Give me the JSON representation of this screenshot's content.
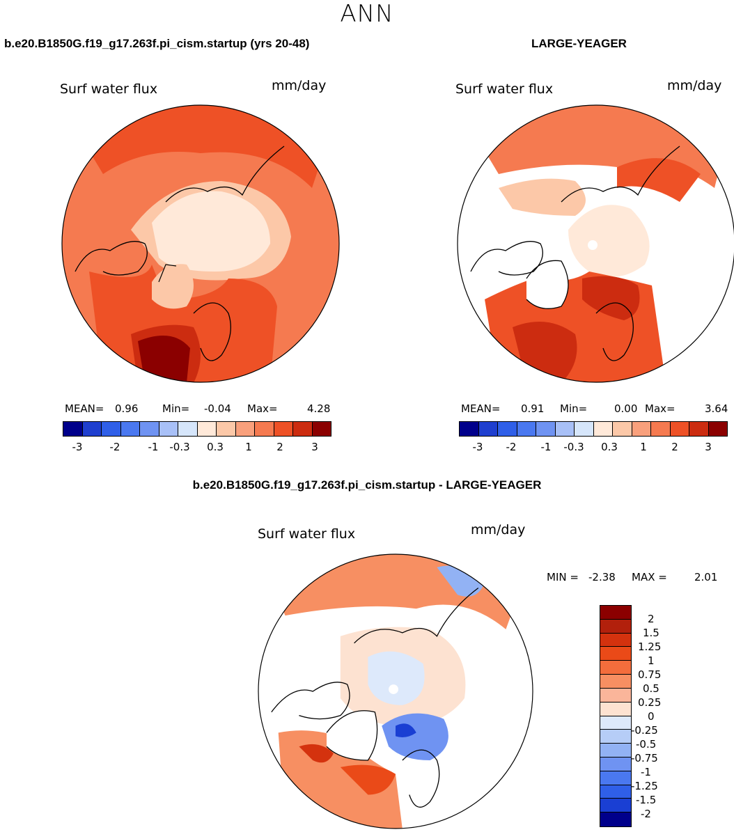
{
  "main_title": "ANN",
  "colors": {
    "diverging_14": [
      "#00008b",
      "#1f3fcf",
      "#2f5fe8",
      "#4a78f0",
      "#6f93f2",
      "#a8c0f7",
      "#d6e6fb",
      "#ffe9d9",
      "#fcc8a8",
      "#f9a07c",
      "#f57a50",
      "#ee5126",
      "#cc2c10",
      "#8b0000"
    ],
    "diff_16": [
      "#8b0000",
      "#b2200c",
      "#d4320e",
      "#ea4a18",
      "#f36d3c",
      "#f78f62",
      "#fab59a",
      "#fde2d1",
      "#dde9fb",
      "#b6cdf7",
      "#92b2f4",
      "#6f93f2",
      "#4a78f0",
      "#2f5fe8",
      "#1a3fd3",
      "#00008b"
    ],
    "land": "#ffffff",
    "coast": "#000000"
  },
  "panels": [
    {
      "case_title": "b.e20.B1850G.f19_g17.263f.pi_cism.startup (yrs 20-48)",
      "var_label": "Surf water flux",
      "units": "mm/day",
      "stats": {
        "mean_label": "MEAN=",
        "mean": "0.96",
        "min_label": "Min=",
        "min": "-0.04",
        "max_label": "Max=",
        "max": "4.28"
      },
      "colorbar_ticks": [
        "-3",
        "-2",
        "-1",
        "-0.3",
        "0.3",
        "1",
        "2",
        "3"
      ]
    },
    {
      "case_title": "LARGE-YEAGER",
      "var_label": "Surf water flux",
      "units": "mm/day",
      "stats": {
        "mean_label": "MEAN=",
        "mean": "0.91",
        "min_label": "Min=",
        "min": "0.00",
        "max_label": "Max=",
        "max": "3.64"
      },
      "colorbar_ticks": [
        "-3",
        "-2",
        "-1",
        "-0.3",
        "0.3",
        "1",
        "2",
        "3"
      ]
    }
  ],
  "diff_panel": {
    "title": "b.e20.B1850G.f19_g17.263f.pi_cism.startup - LARGE-YEAGER",
    "var_label": "Surf water flux",
    "units": "mm/day",
    "min_label": "MIN =",
    "min": "-2.38",
    "max_label": "MAX =",
    "max": "2.01",
    "colorbar_ticks": [
      "2",
      "1.5",
      "1.25",
      "1",
      "0.75",
      "0.5",
      "0.25",
      "0",
      "-0.25",
      "-0.5",
      "-0.75",
      "-1",
      "-1.25",
      "-1.5",
      "-2"
    ]
  }
}
